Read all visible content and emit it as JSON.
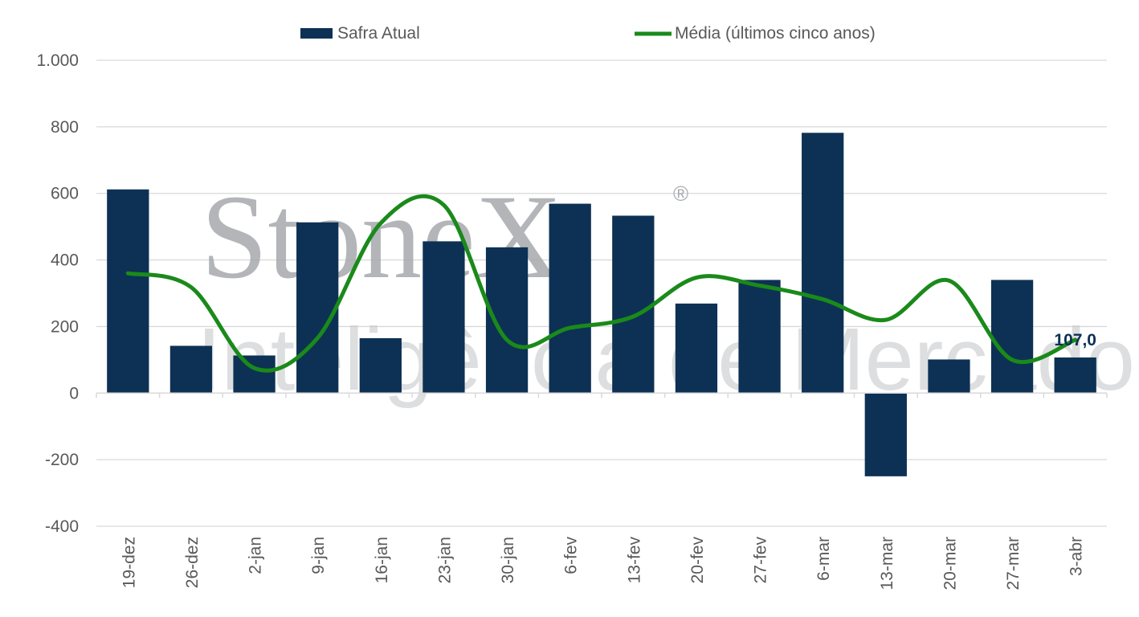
{
  "chart_data": {
    "type": "bar",
    "categories": [
      "19-dez",
      "26-dez",
      "2-jan",
      "9-jan",
      "16-jan",
      "23-jan",
      "30-jan",
      "6-fev",
      "13-fev",
      "20-fev",
      "27-fev",
      "6-mar",
      "13-mar",
      "20-mar",
      "27-mar",
      "3-abr"
    ],
    "series": [
      {
        "name": "Safra Atual",
        "type": "bar",
        "color": "#0d3154",
        "values": [
          612,
          142,
          113,
          513,
          165,
          456,
          438,
          569,
          533,
          269,
          340,
          782,
          -250,
          101,
          340,
          107
        ]
      },
      {
        "name": "Média (últimos cinco anos)",
        "type": "line",
        "smooth": true,
        "color": "#1a8a1a",
        "values": [
          360,
          318,
          75,
          165,
          510,
          565,
          160,
          196,
          230,
          347,
          323,
          282,
          220,
          338,
          100,
          160
        ]
      }
    ],
    "data_labels": [
      {
        "category": "3-abr",
        "series": "Safra Atual",
        "text": "107,0"
      }
    ],
    "ylim": [
      -400,
      1000
    ],
    "yticks": [
      -400,
      -200,
      0,
      200,
      400,
      600,
      800,
      1000
    ],
    "ytick_labels": [
      "-400",
      "-200",
      "0",
      "200",
      "400",
      "600",
      "800",
      "1.000"
    ],
    "grid": true,
    "legend_position": "top",
    "title": "",
    "xlabel": "",
    "ylabel": ""
  },
  "watermark": {
    "brand": "StoneX",
    "registered_mark": "®",
    "tagline": "Inteligência de Mercado"
  }
}
